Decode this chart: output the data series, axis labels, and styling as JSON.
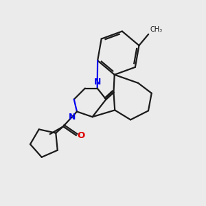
{
  "background_color": "#ebebeb",
  "line_color": "#1a1a1a",
  "N_color": "#0000ee",
  "O_color": "#dd0000",
  "line_width": 1.6,
  "figsize": [
    3.0,
    3.0
  ],
  "dpi": 100,
  "xlim": [
    0,
    10
  ],
  "ylim": [
    0,
    10
  ]
}
